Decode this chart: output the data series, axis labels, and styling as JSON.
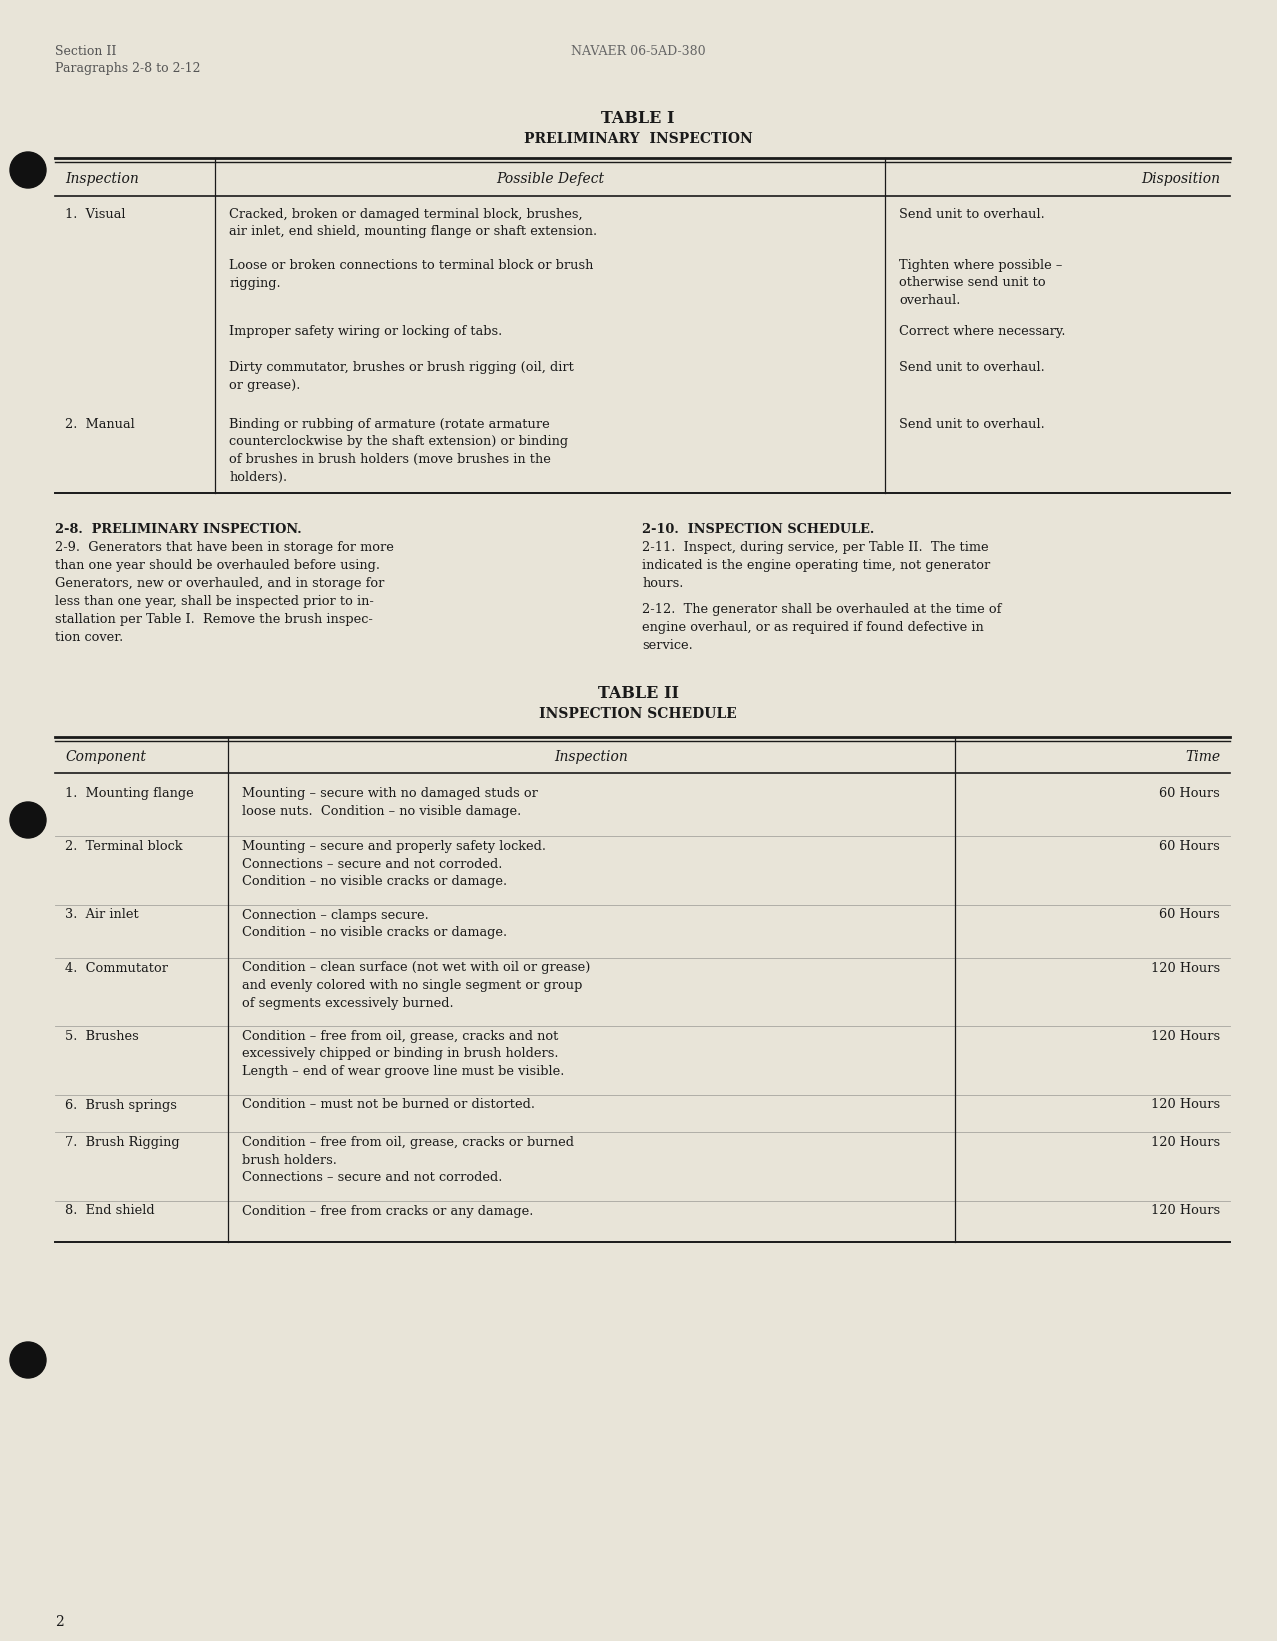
{
  "bg_color": "#e8e4d8",
  "page_num": "2",
  "header_left_line1": "Section II",
  "header_left_line2": "Paragraphs 2-8 to 2-12",
  "header_center": "NAVAER 06-5AD-380",
  "table1_title": "TABLE I",
  "table1_subtitle": "PRELIMINARY  INSPECTION",
  "table1_col_headers": [
    "Inspection",
    "Possible Defect",
    "Disposition"
  ],
  "table1_rows": [
    {
      "inspection": "1.  Visual",
      "defects": [
        "Cracked, broken or damaged terminal block, brushes,\nair inlet, end shield, mounting flange or shaft extension.",
        "Loose or broken connections to terminal block or brush\nrigging.",
        "Improper safety wiring or locking of tabs.",
        "Dirty commutator, brushes or brush rigging (oil, dirt\nor grease)."
      ],
      "dispositions": [
        "Send unit to overhaul.",
        "Tighten where possible –\notherwise send unit to\noverhaul.",
        "Correct where necessary.",
        "Send unit to overhaul."
      ]
    },
    {
      "inspection": "2.  Manual",
      "defects": [
        "Binding or rubbing of armature (rotate armature\ncounterclockwise by the shaft extension) or binding\nof brushes in brush holders (move brushes in the\nholders)."
      ],
      "dispositions": [
        "Send unit to overhaul."
      ]
    }
  ],
  "para_section_title": "2-8.  PRELIMINARY INSPECTION.",
  "para_2_8_text": "2-9.  Generators that have been in storage for more\nthan one year should be overhauled before using.\nGenerators, new or overhauled, and in storage for\nless than one year, shall be inspected prior to in-\nstallation per Table I.  Remove the brush inspec-\ntion cover.",
  "para_right_title": "2-10.  INSPECTION SCHEDULE.",
  "para_2_10_text1": "2-11.  Inspect, during service, per Table II.  The time\nindicated is the engine operating time, not generator\nhours.",
  "para_2_10_text2": "2-12.  The generator shall be overhauled at the time of\nengine overhaul, or as required if found defective in\nservice.",
  "table2_title": "TABLE II",
  "table2_subtitle": "INSPECTION SCHEDULE",
  "table2_col_headers": [
    "Component",
    "Inspection",
    "Time"
  ],
  "table2_rows": [
    {
      "component": "1.  Mounting flange",
      "inspection": "Mounting – secure with no damaged studs or\nloose nuts.  Condition – no visible damage.",
      "time": "60 Hours"
    },
    {
      "component": "2.  Terminal block",
      "inspection": "Mounting – secure and properly safety locked.\nConnections – secure and not corroded.\nCondition – no visible cracks or damage.",
      "time": "60 Hours"
    },
    {
      "component": "3.  Air inlet",
      "inspection": "Connection – clamps secure.\nCondition – no visible cracks or damage.",
      "time": "60 Hours"
    },
    {
      "component": "4.  Commutator",
      "inspection": "Condition – clean surface (not wet with oil or grease)\nand evenly colored with no single segment or group\nof segments excessively burned.",
      "time": "120 Hours"
    },
    {
      "component": "5.  Brushes",
      "inspection": "Condition – free from oil, grease, cracks and not\nexcessively chipped or binding in brush holders.\nLength – end of wear groove line must be visible.",
      "time": "120 Hours"
    },
    {
      "component": "6.  Brush springs",
      "inspection": "Condition – must not be burned or distorted.",
      "time": "120 Hours"
    },
    {
      "component": "7.  Brush Rigging",
      "inspection": "Condition – free from oil, grease, cracks or burned\nbrush holders.\nConnections – secure and not corroded.",
      "time": "120 Hours"
    },
    {
      "component": "8.  End shield",
      "inspection": "Condition – free from cracks or any damage.",
      "time": "120 Hours"
    }
  ]
}
